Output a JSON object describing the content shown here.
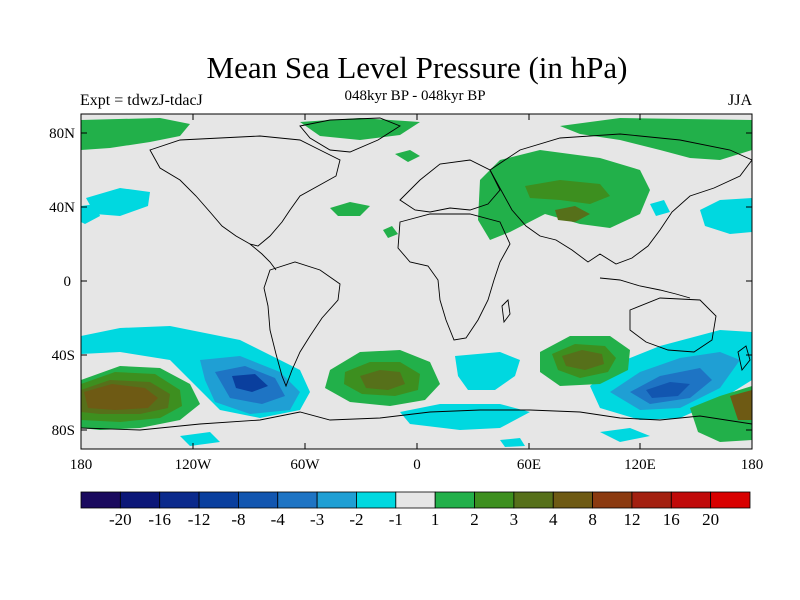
{
  "title": "Mean Sea Level Pressure (in hPa)",
  "experiment": "Expt = tdwzJ-tdacJ",
  "period": "048kyr BP - 048kyr BP",
  "season": "JJA",
  "map": {
    "lat_ticks": [
      "80N",
      "40N",
      "0",
      "40S",
      "80S"
    ],
    "lon_ticks": [
      "180",
      "120W",
      "60W",
      "0",
      "60E",
      "120E",
      "180"
    ]
  },
  "legend": {
    "labels": [
      "-20",
      "-16",
      "-12",
      "-8",
      "-4",
      "-3",
      "-2",
      "-1",
      "1",
      "2",
      "3",
      "4",
      "8",
      "12",
      "16",
      "20"
    ],
    "colors": [
      "#1a0a5e",
      "#0b1778",
      "#0b2a8c",
      "#0a3f9e",
      "#1256b0",
      "#1e74c4",
      "#1f9fd4",
      "#00d8e0",
      "#e6e6e6",
      "#22b04a",
      "#3d8f1f",
      "#56701a",
      "#6e5a14",
      "#8b3a10",
      "#a32010",
      "#c00a0a",
      "#d80000"
    ]
  },
  "colors": {
    "background": "#e6e6e6",
    "coast": "#000000"
  }
}
